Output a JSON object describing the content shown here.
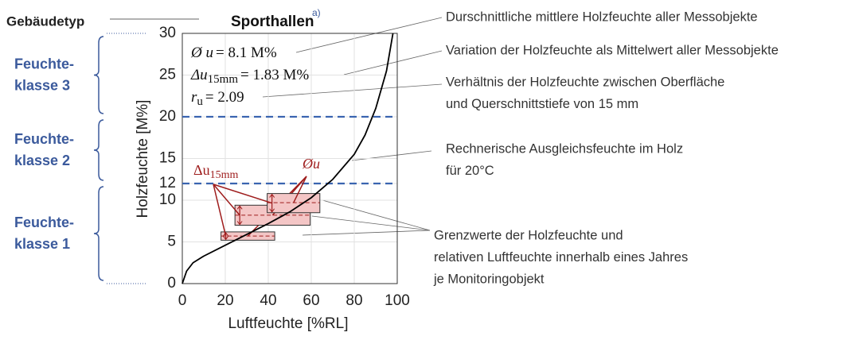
{
  "header": {
    "label": "Gebäudetyp",
    "title": "Sporthallen",
    "footnote": "a)"
  },
  "classes": [
    {
      "lines": [
        "Feuchte-",
        "klasse 3"
      ],
      "range": [
        20,
        30
      ]
    },
    {
      "lines": [
        "Feuchte-",
        "klasse 2"
      ],
      "range": [
        12,
        20
      ]
    },
    {
      "lines": [
        "Feuchte-",
        "klasse 1"
      ],
      "range": [
        0,
        12
      ]
    }
  ],
  "chart_data": {
    "type": "line",
    "xlabel": "Luftfeuchte [%RL]",
    "ylabel": "Holzfeuchte [M%]",
    "xlim": [
      0,
      100
    ],
    "ylim": [
      0,
      30
    ],
    "xticks": [
      0,
      20,
      40,
      60,
      80,
      100
    ],
    "yticks": [
      0,
      5,
      10,
      12,
      15,
      20,
      25,
      30
    ],
    "grid": true,
    "x": [
      0,
      2,
      5,
      10,
      20,
      30,
      40,
      50,
      60,
      70,
      80,
      85,
      90,
      95,
      98
    ],
    "values": [
      0,
      1.5,
      2.5,
      3.3,
      4.6,
      5.9,
      7.2,
      8.6,
      10.3,
      12.5,
      15.5,
      17.8,
      21,
      25.5,
      30
    ],
    "color": "#000000",
    "limits": [
      12,
      20
    ],
    "limit_color": "#3a64b0",
    "ranges": [
      {
        "rh_min": 18,
        "rh_max": 43,
        "u_min": 5.2,
        "u_max": 6.2,
        "mean": 5.7
      },
      {
        "rh_min": 24.5,
        "rh_max": 59.5,
        "u_min": 7.0,
        "u_max": 9.4,
        "mean": 8.2
      },
      {
        "rh_min": 39.5,
        "rh_max": 64,
        "u_min": 8.5,
        "u_max": 10.8,
        "mean": 9.7
      }
    ],
    "range_color": "#f4c6c6",
    "range_stroke": "#9e1c1c"
  },
  "stats": [
    {
      "symbol": "Ø u",
      "subscript": "",
      "text": "= 8.1 M%"
    },
    {
      "symbol": "Δu",
      "subscript": "15mm",
      "text": "= 1.83 M%"
    },
    {
      "symbol": "r",
      "subscript": "u",
      "text": "= 2.09"
    }
  ],
  "annotations": {
    "delta": {
      "symbol": "Δu",
      "subscript": "15mm"
    },
    "mean": "Øu"
  },
  "notes": [
    [
      "Durschnittliche mittlere Holzfeuchte aller Messobjekte"
    ],
    [
      "Variation der Holzfeuchte als Mittelwert aller Messobjekte"
    ],
    [
      "Verhältnis der Holzfeuchte zwischen Oberfläche",
      "und Querschnittstiefe von 15 mm"
    ],
    [
      "Rechnerische Ausgleichsfeuchte im Holz",
      "für 20°C"
    ],
    [
      "Grenzwerte der Holzfeuchte und",
      "relativen Luftfeuchte innerhalb eines Jahres",
      "je Monitoringobjekt"
    ]
  ]
}
